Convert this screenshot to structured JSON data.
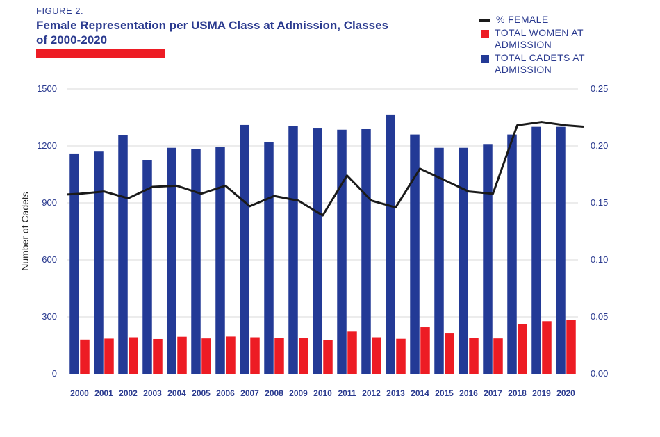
{
  "header": {
    "figure_label": "FIGURE 2.",
    "title": "Female Representation per USMA Class at Admission, Classes of 2000-2020"
  },
  "colors": {
    "cadets": "#233a96",
    "women": "#ed1c24",
    "line": "#1a1a1a",
    "grid": "#d9d9d9",
    "text": "#2a3a8f"
  },
  "chart_data": {
    "type": "bar",
    "categories": [
      "2000",
      "2001",
      "2002",
      "2003",
      "2004",
      "2005",
      "2006",
      "2007",
      "2008",
      "2009",
      "2010",
      "2011",
      "2012",
      "2013",
      "2014",
      "2015",
      "2016",
      "2017",
      "2018",
      "2019",
      "2020"
    ],
    "series": [
      {
        "name": "TOTAL CADETS AT ADMISSION",
        "type": "bar",
        "axis": "left",
        "values": [
          1160,
          1170,
          1255,
          1125,
          1190,
          1185,
          1195,
          1310,
          1220,
          1305,
          1295,
          1285,
          1290,
          1365,
          1260,
          1190,
          1190,
          1210,
          1260,
          1300,
          1300
        ]
      },
      {
        "name": "TOTAL WOMEN AT ADMISSION",
        "type": "bar",
        "axis": "left",
        "values": [
          180,
          185,
          192,
          183,
          195,
          186,
          196,
          192,
          188,
          188,
          178,
          222,
          192,
          184,
          245,
          212,
          188,
          186,
          262,
          277,
          282
        ]
      },
      {
        "name": "% FEMALE",
        "type": "line",
        "axis": "right",
        "values": [
          0.158,
          0.16,
          0.154,
          0.164,
          0.165,
          0.158,
          0.165,
          0.147,
          0.156,
          0.152,
          0.139,
          0.174,
          0.152,
          0.146,
          0.18,
          0.17,
          0.16,
          0.158,
          0.218,
          0.221,
          0.218
        ]
      }
    ],
    "ylabel": "Number of Cadets",
    "ylim": [
      0,
      1500
    ],
    "yticks": [
      "0",
      "300",
      "600",
      "900",
      "1200",
      "1500"
    ],
    "y2lim": [
      0,
      0.25
    ],
    "y2ticks": [
      "0.00",
      "0.05",
      "0.10",
      "0.15",
      "0.20",
      "0.25"
    ],
    "grid": true,
    "legend_position": "top-right"
  }
}
